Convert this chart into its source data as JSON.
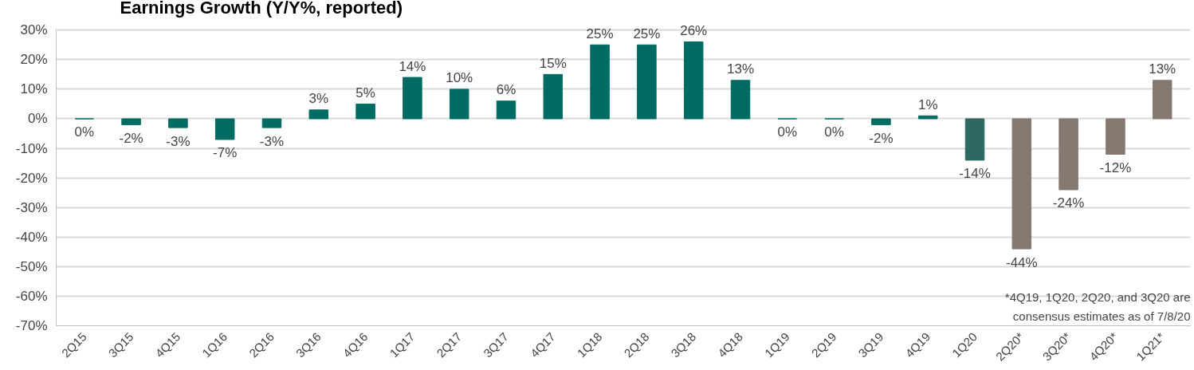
{
  "chart_data": {
    "type": "bar",
    "title": "Earnings Growth (Y/Y%, reported)",
    "categories": [
      "2Q15",
      "3Q15",
      "4Q15",
      "1Q16",
      "2Q16",
      "3Q16",
      "4Q16",
      "1Q17",
      "2Q17",
      "3Q17",
      "4Q17",
      "1Q18",
      "2Q18",
      "3Q18",
      "4Q18",
      "1Q19",
      "2Q19",
      "3Q19",
      "4Q19",
      "1Q20",
      "2Q20*",
      "3Q20*",
      "4Q20*",
      "1Q21*"
    ],
    "values": [
      0,
      -2,
      -3,
      -7,
      -3,
      3,
      5,
      14,
      10,
      6,
      15,
      25,
      25,
      26,
      13,
      0,
      0,
      -2,
      1,
      -14,
      -44,
      -24,
      -12,
      13
    ],
    "colors": [
      "#006b63",
      "#006b63",
      "#006b63",
      "#006b63",
      "#006b63",
      "#006b63",
      "#006b63",
      "#006b63",
      "#006b63",
      "#006b63",
      "#006b63",
      "#006b63",
      "#006b63",
      "#006b63",
      "#006b63",
      "#006b63",
      "#006b63",
      "#006b63",
      "#006b63",
      "#2f6762",
      "#857870",
      "#857870",
      "#857870",
      "#857870"
    ],
    "value_labels": [
      "0%",
      "-2%",
      "-3%",
      "-7%",
      "-3%",
      "3%",
      "5%",
      "14%",
      "10%",
      "6%",
      "15%",
      "25%",
      "25%",
      "26%",
      "13%",
      "0%",
      "0%",
      "-2%",
      "1%",
      "-14%",
      "-44%",
      "-24%",
      "-12%",
      "13%"
    ],
    "ylim": [
      -70,
      30
    ],
    "yticks": [
      {
        "value": -70,
        "label": "-70%"
      },
      {
        "value": -60,
        "label": "-60%"
      },
      {
        "value": -50,
        "label": "-50%"
      },
      {
        "value": -40,
        "label": "-40%"
      },
      {
        "value": -30,
        "label": "-30%"
      },
      {
        "value": -20,
        "label": "-20%"
      },
      {
        "value": -10,
        "label": "-10%"
      },
      {
        "value": 0,
        "label": "0%"
      },
      {
        "value": 10,
        "label": "10%"
      },
      {
        "value": 20,
        "label": "20%"
      },
      {
        "value": 30,
        "label": "30%"
      }
    ],
    "grid": "y",
    "annotations": [
      "*4Q19, 1Q20, 2Q20, and 3Q20 are\nconsensus estimates as of 7/8/20"
    ]
  }
}
